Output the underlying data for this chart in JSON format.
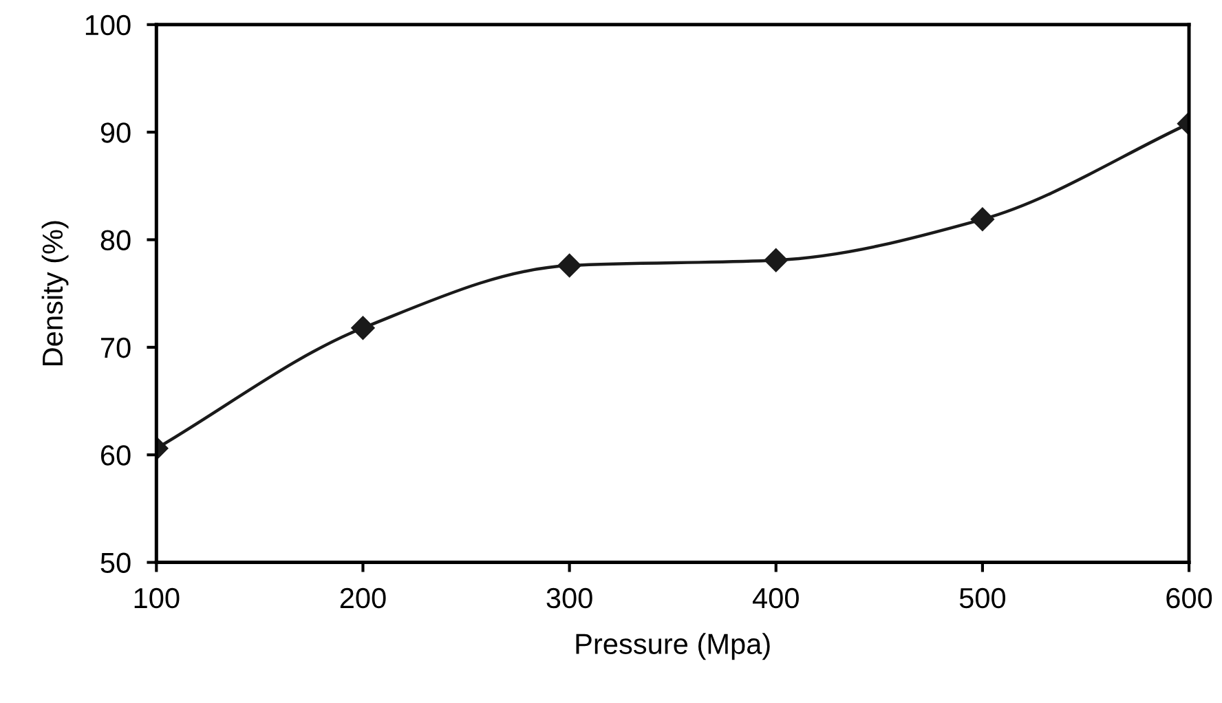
{
  "chart_data": {
    "type": "line",
    "xlabel": "Pressure (Mpa)",
    "ylabel": "Density (%)",
    "x": [
      100,
      200,
      300,
      400,
      500,
      600
    ],
    "series": [
      {
        "color": "#1a1a1a",
        "values": [
          60.6,
          71.8,
          77.6,
          78.1,
          81.9,
          90.8
        ]
      }
    ],
    "xlim": [
      100,
      600
    ],
    "xticks": [
      100,
      200,
      300,
      400,
      500,
      600
    ],
    "ylim": [
      50,
      100
    ],
    "yticks": [
      50,
      60,
      70,
      80,
      90,
      100
    ],
    "marker": "diamond",
    "line_style": "solid",
    "grid": false,
    "legend": false
  }
}
